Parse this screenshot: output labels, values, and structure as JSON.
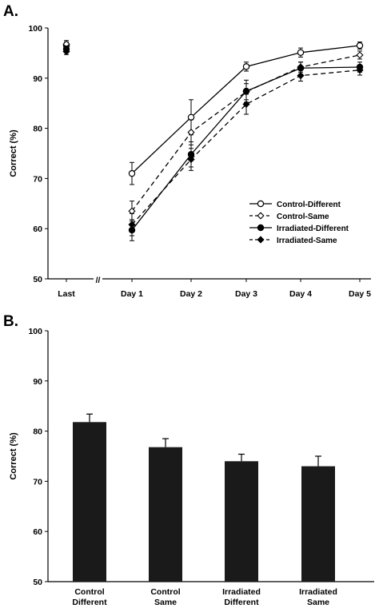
{
  "chart_data": [
    {
      "panel": "A.",
      "type": "line",
      "ylabel": "Correct (%)",
      "ylim": [
        50,
        100
      ],
      "yticks": [
        50,
        60,
        70,
        80,
        90,
        100
      ],
      "x_break_symbol": "//",
      "categories": [
        "Last",
        "Day 1",
        "Day 2",
        "Day 3",
        "Day 4",
        "Day 5"
      ],
      "legend_position": "lower-right",
      "series": [
        {
          "name": "Control-Different",
          "line": "solid",
          "marker": "circle-open",
          "values": [
            96.5,
            71,
            82.2,
            92.3,
            95.1,
            96.5
          ],
          "errors": [
            0.7,
            2.2,
            3.5,
            0.9,
            0.9,
            0.7
          ]
        },
        {
          "name": "Control-Same",
          "line": "dashed",
          "marker": "diamond-open",
          "values": [
            96.8,
            63.5,
            79.2,
            87.3,
            92.2,
            94.6
          ],
          "errors": [
            0.7,
            2.0,
            2.5,
            1.6,
            1.0,
            0.8
          ]
        },
        {
          "name": "Irradiated-Different",
          "line": "solid",
          "marker": "circle-filled",
          "values": [
            95.8,
            59.7,
            74.8,
            87.4,
            92.0,
            92.2
          ],
          "errors": [
            0.6,
            2.1,
            2.5,
            2.2,
            1.2,
            1.0
          ]
        },
        {
          "name": "Irradiated-Same",
          "line": "dashed",
          "marker": "diamond-filled",
          "values": [
            95.3,
            60.8,
            73.8,
            84.8,
            90.5,
            91.6
          ],
          "errors": [
            0.6,
            2.2,
            2.2,
            2.0,
            1.1,
            1.0
          ]
        }
      ]
    },
    {
      "panel": "B.",
      "type": "bar",
      "ylabel": "Correct (%)",
      "ylim": [
        50,
        100
      ],
      "yticks": [
        50,
        60,
        70,
        80,
        90,
        100
      ],
      "bar_color": "#1a1a1a",
      "categories": [
        [
          "Control",
          "Different"
        ],
        [
          "Control",
          "Same"
        ],
        [
          "Irradiated",
          "Different"
        ],
        [
          "Irradiated",
          "Same"
        ]
      ],
      "values": [
        81.8,
        76.8,
        74.0,
        73.0
      ],
      "errors": [
        1.6,
        1.7,
        1.4,
        2.0
      ]
    }
  ]
}
